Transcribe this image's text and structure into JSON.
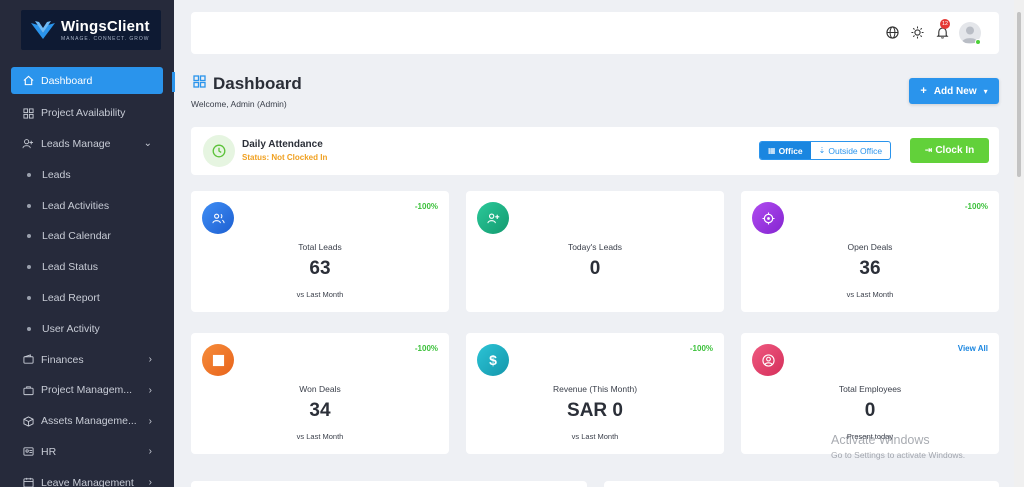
{
  "brand": {
    "name": "WingsClient",
    "tagline": "MANAGE. CONNECT. GROW",
    "color": "#2a94ec"
  },
  "sidebar": {
    "items": [
      {
        "label": "Dashboard",
        "icon": "home-icon",
        "active": true
      },
      {
        "label": "Project Availability",
        "icon": "grid-icon"
      },
      {
        "label": "Leads Manage",
        "icon": "user-plus-icon",
        "expanded": true
      },
      {
        "label": "Leads",
        "sub": true
      },
      {
        "label": "Lead Activities",
        "sub": true
      },
      {
        "label": "Lead Calendar",
        "sub": true
      },
      {
        "label": "Lead Status",
        "sub": true
      },
      {
        "label": "Lead Report",
        "sub": true
      },
      {
        "label": "User Activity",
        "sub": true
      },
      {
        "label": "Finances",
        "icon": "wallet-icon"
      },
      {
        "label": "Project Managem...",
        "icon": "briefcase-icon"
      },
      {
        "label": "Assets Manageme...",
        "icon": "box-icon"
      },
      {
        "label": "HR",
        "icon": "id-card-icon"
      },
      {
        "label": "Leave Management",
        "icon": "calendar-icon"
      }
    ]
  },
  "header": {
    "notification_count": "12"
  },
  "page": {
    "title": "Dashboard",
    "welcome": "Welcome, Admin (Admin)",
    "add_new_label": "Add New"
  },
  "attendance": {
    "title": "Daily Attendance",
    "status": "Status: Not Clocked In",
    "office_label": "Office",
    "outside_label": "Outside Office",
    "clock_in_label": "Clock In"
  },
  "cards": [
    {
      "label": "Total Leads",
      "value": "63",
      "sub": "vs Last Month",
      "change": "-100%",
      "icon": "users-icon",
      "color": "#2a77e6"
    },
    {
      "label": "Today's Leads",
      "value": "0",
      "sub": "",
      "change": "",
      "icon": "user-plus-icon",
      "color": "#1fb384"
    },
    {
      "label": "Open Deals",
      "value": "36",
      "sub": "vs Last Month",
      "change": "-100%",
      "icon": "target-icon",
      "color": "#9b35e0"
    },
    {
      "label": "Won Deals",
      "value": "34",
      "sub": "vs Last Month",
      "change": "-100%",
      "icon": "square-icon",
      "color": "#f0782a"
    },
    {
      "label": "Revenue (This Month)",
      "value": "SAR 0",
      "sub": "vs Last Month",
      "change": "-100%",
      "icon": "dollar-icon",
      "color": "#1cb0c4"
    },
    {
      "label": "Total Employees",
      "value": "0",
      "sub": "Present today",
      "link": "View All",
      "icon": "user-circle-icon",
      "color": "#e5406b"
    }
  ],
  "watermark": {
    "title": "Activate Windows",
    "sub": "Go to Settings to activate Windows."
  }
}
